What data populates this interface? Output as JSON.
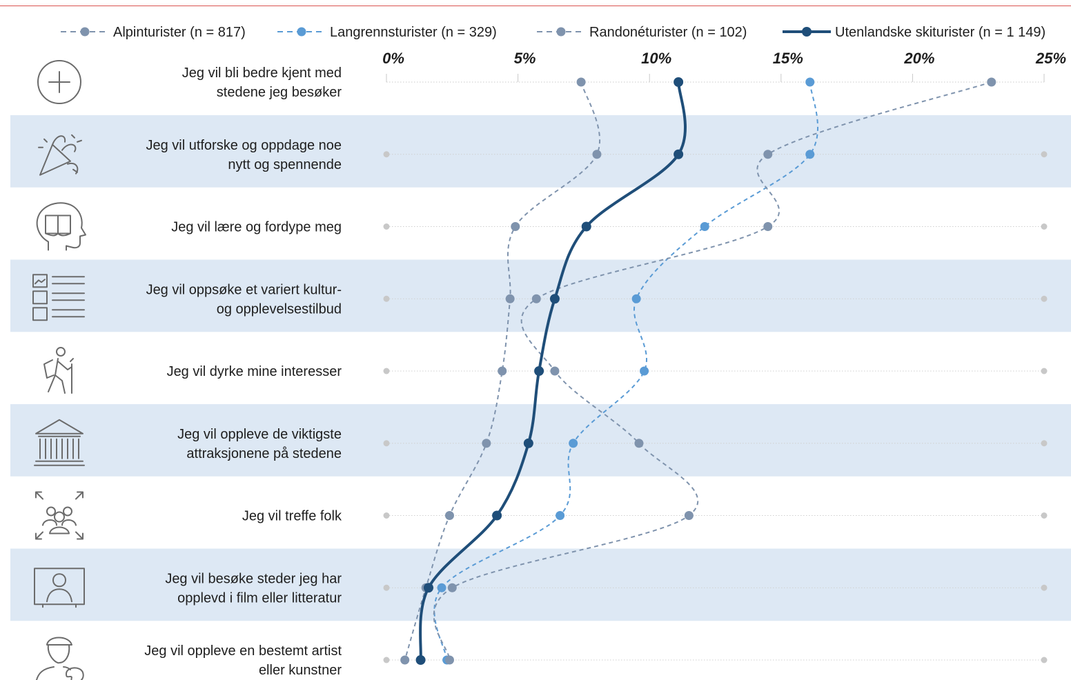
{
  "chart_data": {
    "type": "line",
    "orientation": "horizontal-values-vertical-categories",
    "x_ticks": [
      "0%",
      "5%",
      "10%",
      "15%",
      "20%",
      "25%"
    ],
    "xlim": [
      0,
      25
    ],
    "categories": [
      {
        "lines": [
          "Jeg vil bli bedre kjent med",
          "stedene jeg besøker"
        ],
        "icon": "plus-circle-icon"
      },
      {
        "lines": [
          "Jeg vil utforske og oppdage noe",
          "nytt og spennende"
        ],
        "icon": "party-popper-icon"
      },
      {
        "lines": [
          "Jeg vil lære og fordype meg"
        ],
        "icon": "head-book-icon"
      },
      {
        "lines": [
          "Jeg vil oppsøke et variert kultur-",
          "og opplevelsestilbud"
        ],
        "icon": "culture-list-icon"
      },
      {
        "lines": [
          "Jeg vil dyrke mine interesser"
        ],
        "icon": "hiker-icon"
      },
      {
        "lines": [
          "Jeg vil oppleve de viktigste",
          "attraksjonene på stedene"
        ],
        "icon": "museum-icon"
      },
      {
        "lines": [
          "Jeg vil treffe folk"
        ],
        "icon": "group-people-icon"
      },
      {
        "lines": [
          "Jeg vil besøke steder jeg har",
          "opplevd i film eller litteratur"
        ],
        "icon": "screen-person-icon"
      },
      {
        "lines": [
          "Jeg vil oppleve en bestemt artist",
          "eller kunstner"
        ],
        "icon": "artist-palette-icon"
      }
    ],
    "series": [
      {
        "name": "Alpinturister (n = 817)",
        "color": "#7f93ad",
        "style": "dashed",
        "values": [
          7.4,
          8.0,
          4.9,
          4.7,
          4.4,
          3.8,
          2.4,
          1.5,
          0.7
        ]
      },
      {
        "name": "Langrennsturister (n = 329)",
        "color": "#5a9bd5",
        "style": "dashed",
        "values": [
          16.1,
          16.1,
          12.1,
          9.5,
          9.8,
          7.1,
          6.6,
          2.1,
          2.3
        ]
      },
      {
        "name": "Randonéturister (n = 102)",
        "color": "#7f93ad",
        "style": "dashed",
        "values": [
          23.0,
          14.5,
          14.5,
          5.7,
          6.4,
          9.6,
          11.5,
          2.5,
          2.4
        ]
      },
      {
        "name": "Utenlandske skiturister (n = 1 149)",
        "color": "#1f4e79",
        "style": "solid",
        "values": [
          11.1,
          11.1,
          7.6,
          6.4,
          5.8,
          5.4,
          4.2,
          1.6,
          1.3
        ]
      }
    ],
    "row_bands": "alternating light blue"
  }
}
